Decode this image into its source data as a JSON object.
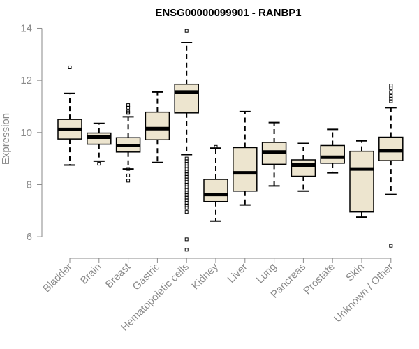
{
  "chart_data": {
    "type": "boxplot",
    "title": "ENSG00000099901 - RANBP1",
    "xlabel": "",
    "ylabel": "Expression",
    "ylim": [
      5.2,
      14.2
    ],
    "yticks": [
      6,
      8,
      10,
      12,
      14
    ],
    "box_color": "#ede5cf",
    "median_color": "#000000",
    "axis_color": "#8a8a8a",
    "categories": [
      "Bladder",
      "Brain",
      "Breast",
      "Gastric",
      "Hematopoietic cells",
      "Kidney",
      "Liver",
      "Lung",
      "Pancreas",
      "Prostate",
      "Skin",
      "Unknown / Other"
    ],
    "boxes": [
      {
        "name": "Bladder",
        "q1": 9.75,
        "median": 10.12,
        "q3": 10.5,
        "whisker_low": 8.75,
        "whisker_high": 11.5,
        "outliers": [
          12.5
        ]
      },
      {
        "name": "Brain",
        "q1": 9.55,
        "median": 9.82,
        "q3": 9.98,
        "whisker_low": 8.9,
        "whisker_high": 10.35,
        "outliers": [
          8.8
        ]
      },
      {
        "name": "Breast",
        "q1": 9.25,
        "median": 9.5,
        "q3": 9.8,
        "whisker_low": 8.6,
        "whisker_high": 10.6,
        "outliers": [
          8.15,
          8.35,
          8.6,
          10.75,
          10.8,
          10.95,
          11.05
        ]
      },
      {
        "name": "Gastric",
        "q1": 9.72,
        "median": 10.15,
        "q3": 10.78,
        "whisker_low": 8.85,
        "whisker_high": 11.55,
        "outliers": []
      },
      {
        "name": "Hematopoietic cells",
        "q1": 10.75,
        "median": 11.55,
        "q3": 11.85,
        "whisker_low": 9.15,
        "whisker_high": 13.45,
        "outliers": [
          13.9,
          5.5,
          5.9,
          6.95,
          7.1,
          7.2,
          7.3,
          7.4,
          7.5,
          7.6,
          7.7,
          7.8,
          7.9,
          8.0,
          8.1,
          8.2,
          8.3,
          8.4,
          8.5,
          8.6,
          8.7,
          8.8,
          8.9,
          9.0
        ]
      },
      {
        "name": "Kidney",
        "q1": 7.35,
        "median": 7.62,
        "q3": 8.2,
        "whisker_low": 6.6,
        "whisker_high": 9.4,
        "outliers": [
          9.45
        ]
      },
      {
        "name": "Liver",
        "q1": 7.75,
        "median": 8.45,
        "q3": 9.42,
        "whisker_low": 7.22,
        "whisker_high": 10.8,
        "outliers": []
      },
      {
        "name": "Lung",
        "q1": 8.78,
        "median": 9.25,
        "q3": 9.62,
        "whisker_low": 7.95,
        "whisker_high": 10.38,
        "outliers": []
      },
      {
        "name": "Pancreas",
        "q1": 8.32,
        "median": 8.75,
        "q3": 8.95,
        "whisker_low": 7.75,
        "whisker_high": 9.58,
        "outliers": []
      },
      {
        "name": "Prostate",
        "q1": 8.82,
        "median": 9.05,
        "q3": 9.5,
        "whisker_low": 8.45,
        "whisker_high": 10.12,
        "outliers": []
      },
      {
        "name": "Skin",
        "q1": 6.95,
        "median": 8.6,
        "q3": 9.28,
        "whisker_low": 6.75,
        "whisker_high": 9.68,
        "outliers": []
      },
      {
        "name": "Unknown / Other",
        "q1": 8.92,
        "median": 9.3,
        "q3": 9.82,
        "whisker_low": 7.62,
        "whisker_high": 10.95,
        "outliers": [
          5.65,
          11.2,
          11.3,
          11.4,
          11.55,
          11.7,
          11.8
        ]
      }
    ]
  }
}
